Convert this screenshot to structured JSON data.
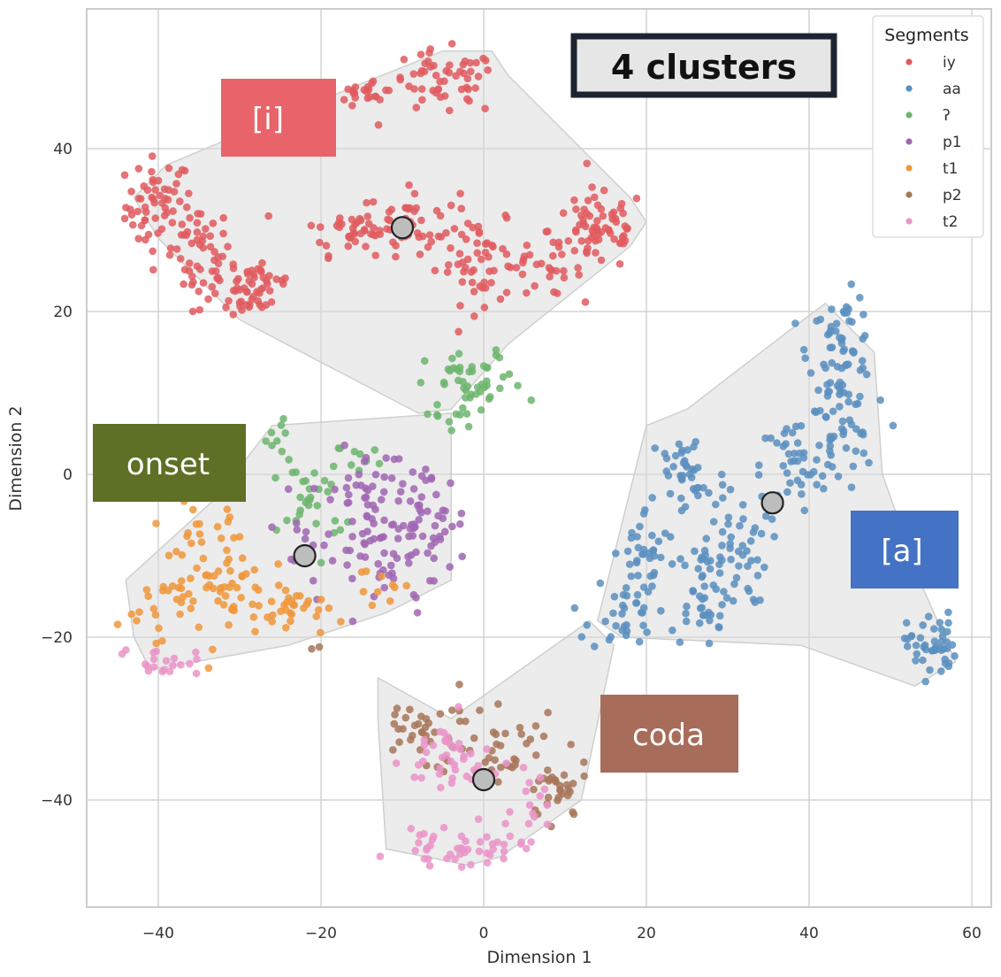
{
  "chart_data": {
    "type": "scatter",
    "xlabel": "Dimension 1",
    "ylabel": "Dimension 2",
    "xlim": [
      -49,
      62
    ],
    "ylim": [
      -53,
      57
    ],
    "xticks": [
      "−40",
      "−20",
      "0",
      "20",
      "40",
      "60"
    ],
    "xtick_values": [
      -40,
      -20,
      0,
      20,
      40,
      60
    ],
    "yticks": [
      "40",
      "20",
      "0",
      "−20",
      "−40"
    ],
    "ytick_values": [
      40,
      20,
      0,
      -20,
      -40
    ],
    "grid": true,
    "legend": {
      "title": "Segments",
      "placement": "top-right",
      "entries": [
        "iy",
        "aa",
        "ʔ",
        "p1",
        "t1",
        "p2",
        "t2"
      ]
    },
    "series_colors": {
      "iy": "#e05a5f",
      "aa": "#5b8fc0",
      "ʔ": "#6db56d",
      "p1": "#a066b3",
      "t1": "#f0973a",
      "p2": "#a8765a",
      "t2": "#ea94c8"
    },
    "series": [
      {
        "name": "iy",
        "clusters": [
          {
            "cx": -40,
            "cy": 33,
            "sx": 2,
            "sy": 3,
            "n": 55
          },
          {
            "cx": -35,
            "cy": 27,
            "sx": 2,
            "sy": 3,
            "n": 45
          },
          {
            "cx": -31,
            "cy": 23,
            "sx": 2.5,
            "sy": 2,
            "n": 35
          },
          {
            "cx": -27,
            "cy": 23,
            "sx": 2,
            "sy": 2,
            "n": 25
          },
          {
            "cx": -16,
            "cy": 30,
            "sx": 3,
            "sy": 1.5,
            "n": 40
          },
          {
            "cx": -9,
            "cy": 31,
            "sx": 3,
            "sy": 2,
            "n": 45
          },
          {
            "cx": 0,
            "cy": 26,
            "sx": 3,
            "sy": 2.5,
            "n": 55
          },
          {
            "cx": 8,
            "cy": 25,
            "sx": 2,
            "sy": 1.5,
            "n": 20
          },
          {
            "cx": 14,
            "cy": 30,
            "sx": 3,
            "sy": 2.5,
            "n": 70
          },
          {
            "cx": -5,
            "cy": 48,
            "sx": 3.5,
            "sy": 2,
            "n": 55
          },
          {
            "cx": -14,
            "cy": 47,
            "sx": 2,
            "sy": 1,
            "n": 20
          }
        ]
      },
      {
        "name": "aa",
        "clusters": [
          {
            "cx": 44,
            "cy": 15,
            "sx": 2,
            "sy": 3.5,
            "n": 70
          },
          {
            "cx": 44,
            "cy": 4,
            "sx": 2,
            "sy": 2.5,
            "n": 30
          },
          {
            "cx": 38,
            "cy": 1,
            "sx": 2,
            "sy": 3,
            "n": 40
          },
          {
            "cx": 25,
            "cy": 0,
            "sx": 2.5,
            "sy": 3,
            "n": 40
          },
          {
            "cx": 20,
            "cy": -10,
            "sx": 2,
            "sy": 3,
            "n": 35
          },
          {
            "cx": 17,
            "cy": -17,
            "sx": 2,
            "sy": 2.5,
            "n": 30
          },
          {
            "cx": 27,
            "cy": -14,
            "sx": 2,
            "sy": 3.5,
            "n": 50
          },
          {
            "cx": 31,
            "cy": -9,
            "sx": 2,
            "sy": 3.5,
            "n": 40
          },
          {
            "cx": 55,
            "cy": -21,
            "sx": 1.5,
            "sy": 2,
            "n": 45
          }
        ]
      },
      {
        "name": "ʔ",
        "clusters": [
          {
            "cx": -1,
            "cy": 11,
            "sx": 3,
            "sy": 2,
            "n": 45
          },
          {
            "cx": -4,
            "cy": 7,
            "sx": 2,
            "sy": 1,
            "n": 10
          },
          {
            "cx": -21,
            "cy": -3,
            "sx": 2,
            "sy": 3,
            "n": 30
          },
          {
            "cx": -25,
            "cy": 4,
            "sx": 1,
            "sy": 2,
            "n": 10
          },
          {
            "cx": -15,
            "cy": 2,
            "sx": 1.5,
            "sy": 1,
            "n": 8
          }
        ]
      },
      {
        "name": "p1",
        "clusters": [
          {
            "cx": -15,
            "cy": -3,
            "sx": 3,
            "sy": 3,
            "n": 45
          },
          {
            "cx": -7,
            "cy": -6,
            "sx": 2.5,
            "sy": 3.5,
            "n": 55
          },
          {
            "cx": -12,
            "cy": -11,
            "sx": 3,
            "sy": 2.5,
            "n": 30
          },
          {
            "cx": -22,
            "cy": -9,
            "sx": 2,
            "sy": 2,
            "n": 12
          }
        ]
      },
      {
        "name": "t1",
        "clusters": [
          {
            "cx": -35,
            "cy": -9,
            "sx": 3,
            "sy": 3,
            "n": 35
          },
          {
            "cx": -30,
            "cy": -15,
            "sx": 3,
            "sy": 3,
            "n": 40
          },
          {
            "cx": -40,
            "cy": -16,
            "sx": 2.5,
            "sy": 2,
            "n": 20
          },
          {
            "cx": -23,
            "cy": -17,
            "sx": 2,
            "sy": 1.5,
            "n": 25
          },
          {
            "cx": -13,
            "cy": -14,
            "sx": 2,
            "sy": 2,
            "n": 10
          }
        ]
      },
      {
        "name": "p2",
        "clusters": [
          {
            "cx": -7,
            "cy": -31,
            "sx": 3.5,
            "sy": 2,
            "n": 35
          },
          {
            "cx": 3,
            "cy": -35,
            "sx": 3,
            "sy": 2.5,
            "n": 35
          },
          {
            "cx": 9,
            "cy": -39,
            "sx": 2,
            "sy": 2,
            "n": 30
          },
          {
            "cx": -21,
            "cy": -21,
            "sx": 0.5,
            "sy": 0.5,
            "n": 2
          }
        ]
      },
      {
        "name": "t2",
        "clusters": [
          {
            "cx": -4,
            "cy": -35,
            "sx": 3,
            "sy": 2.5,
            "n": 40
          },
          {
            "cx": -3,
            "cy": -46,
            "sx": 4,
            "sy": 1,
            "n": 45
          },
          {
            "cx": 6,
            "cy": -40,
            "sx": 2.5,
            "sy": 2,
            "n": 15
          },
          {
            "cx": -40,
            "cy": -23,
            "sx": 2.5,
            "sy": 0.8,
            "n": 20
          }
        ]
      }
    ],
    "centroids": [
      {
        "x": -10,
        "y": 30.3
      },
      {
        "x": 35.5,
        "y": -3.5
      },
      {
        "x": -22,
        "y": -10
      },
      {
        "x": 0,
        "y": -37.5
      }
    ],
    "hulls": [
      [
        [
          -43,
          34
        ],
        [
          -39,
          38
        ],
        [
          -15,
          48
        ],
        [
          -5,
          52
        ],
        [
          1,
          52
        ],
        [
          3,
          49
        ],
        [
          18,
          34
        ],
        [
          20,
          31
        ],
        [
          18,
          28
        ],
        [
          3,
          16
        ],
        [
          -4,
          8
        ],
        [
          -8,
          7.5
        ],
        [
          -30,
          19
        ],
        [
          -40,
          29
        ]
      ],
      [
        [
          -44,
          -13
        ],
        [
          -33,
          -3
        ],
        [
          -26,
          6
        ],
        [
          -4,
          7.5
        ],
        [
          -4,
          -13
        ],
        [
          -12,
          -17
        ],
        [
          -24,
          -21
        ],
        [
          -41,
          -24
        ],
        [
          -43,
          -20
        ]
      ],
      [
        [
          42,
          21
        ],
        [
          48,
          15
        ],
        [
          49,
          0
        ],
        [
          54,
          -14
        ],
        [
          58,
          -23
        ],
        [
          53,
          -26
        ],
        [
          39,
          -21
        ],
        [
          17,
          -20
        ],
        [
          14,
          -18
        ],
        [
          20,
          6
        ],
        [
          25,
          8
        ],
        [
          38,
          18
        ]
      ],
      [
        [
          -13,
          -25
        ],
        [
          -4,
          -30
        ],
        [
          13,
          -18
        ],
        [
          16,
          -21
        ],
        [
          12,
          -40
        ],
        [
          2,
          -47
        ],
        [
          -2,
          -48
        ],
        [
          -12,
          -46
        ],
        [
          -13,
          -30
        ]
      ]
    ],
    "annotations": [
      {
        "label": "[i]",
        "color": "#e8636a"
      },
      {
        "label": "onset",
        "color": "#5e7026"
      },
      {
        "label": "[a]",
        "color": "#4472c4"
      },
      {
        "label": "coda",
        "color": "#a86c5a"
      }
    ],
    "title_box": "4 clusters"
  }
}
